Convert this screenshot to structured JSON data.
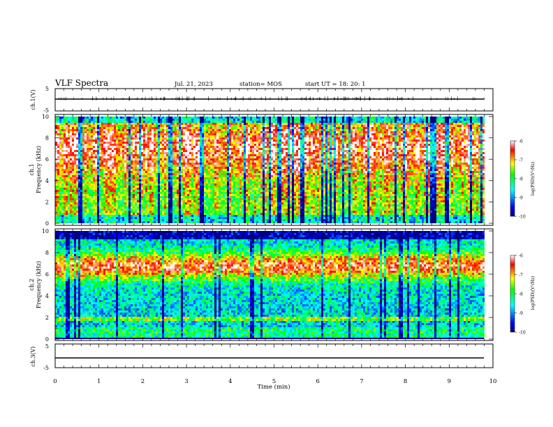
{
  "header": {
    "title": "VLF Spectra",
    "date": "Jul. 21, 2023",
    "station": "station= MOS",
    "start_time": "start UT = 18: 20: 1"
  },
  "chart_data": [
    {
      "type": "line",
      "ylabel": "ch.1(V)",
      "yticks": [
        "5",
        "-5"
      ],
      "ylim": [
        -5,
        5
      ],
      "x": [
        0,
        9.85
      ],
      "values": [
        0.1,
        0.1
      ],
      "note_series": "near-constant trace with small bursts"
    },
    {
      "type": "heatmap",
      "ylabel": "ch.1\nFrequency (kHz)",
      "ylabel_lines": [
        "ch.1",
        "Frequency (kHz)"
      ],
      "yticks": [
        "0",
        "2",
        "4",
        "6",
        "8",
        "10"
      ],
      "ylim": [
        0,
        10
      ],
      "xlim": [
        0,
        10
      ],
      "data_x_end": 9.85,
      "colorbar": {
        "label": "log(PSD)(V²/Hz)",
        "ticks": [
          "-6",
          "-7",
          "-8",
          "-9",
          "-10"
        ],
        "range": [
          -10,
          -6
        ]
      },
      "pattern": "vertical-bursts"
    },
    {
      "type": "heatmap",
      "ylabel": "ch.2\nFrequency (kHz)",
      "ylabel_lines": [
        "ch.2",
        "Frequency (kHz)"
      ],
      "yticks": [
        "0",
        "2",
        "4",
        "6",
        "8",
        "10"
      ],
      "ylim": [
        0,
        10
      ],
      "xlim": [
        0,
        10
      ],
      "data_x_end": 9.85,
      "colorbar": {
        "label": "log(PSD)(V²/Hz)",
        "ticks": [
          "-6",
          "-7",
          "-8",
          "-9",
          "-10"
        ],
        "range": [
          -10,
          -6
        ]
      },
      "pattern": "band-6-8kHz"
    },
    {
      "type": "line",
      "ylabel": "ch.3(V)",
      "yticks": [
        "5",
        "-5"
      ],
      "ylim": [
        -5,
        5
      ],
      "x": [
        0,
        9.85
      ],
      "values": [
        -1.0,
        -1.0
      ]
    }
  ],
  "xaxis": {
    "label": "Time (min)",
    "ticks": [
      "0",
      "1",
      "2",
      "3",
      "4",
      "5",
      "6",
      "7",
      "8",
      "9",
      "10"
    ],
    "xlim": [
      0,
      10
    ]
  },
  "colors": {
    "jet": [
      "#000080",
      "#0000ff",
      "#00ffff",
      "#00ff00",
      "#ffff00",
      "#ff0000",
      "#ffffff"
    ]
  }
}
